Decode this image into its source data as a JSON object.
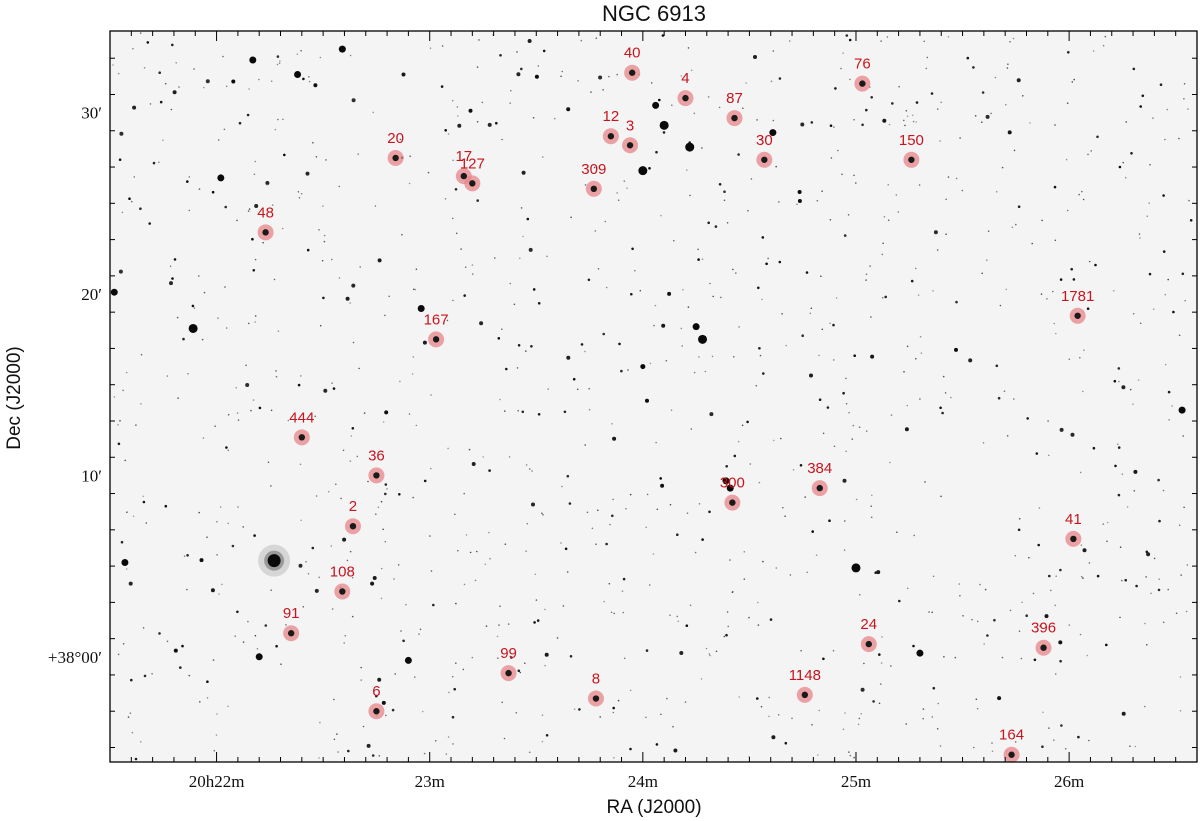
{
  "title": "NGC 6913",
  "x_axis_label": "RA (J2000)",
  "y_axis_label": "Dec (J2000)",
  "x_ticks": [
    {
      "ra_min": 22,
      "label": "20h22m"
    },
    {
      "ra_min": 23,
      "label": "23m"
    },
    {
      "ra_min": 24,
      "label": "24m"
    },
    {
      "ra_min": 25,
      "label": "25m"
    },
    {
      "ra_min": 26,
      "label": "26m"
    }
  ],
  "y_ticks": [
    {
      "dec_arcmin": 0,
      "label": "+38°00′"
    },
    {
      "dec_arcmin": 10,
      "label": "10′"
    },
    {
      "dec_arcmin": 20,
      "label": "20′"
    },
    {
      "dec_arcmin": 30,
      "label": "30′"
    }
  ],
  "ra_range_min": [
    21.5,
    26.6
  ],
  "dec_range_arcmin": [
    -5.8,
    34.5
  ],
  "marker_color": "#e8868a",
  "label_color": "#c8141e",
  "stars": [
    {
      "id": "40",
      "ra": 23.95,
      "dec": 32.2
    },
    {
      "id": "4",
      "ra": 24.2,
      "dec": 30.8
    },
    {
      "id": "87",
      "ra": 24.43,
      "dec": 29.7
    },
    {
      "id": "76",
      "ra": 25.03,
      "dec": 31.6
    },
    {
      "id": "12",
      "ra": 23.85,
      "dec": 28.7
    },
    {
      "id": "3",
      "ra": 23.94,
      "dec": 28.2
    },
    {
      "id": "30",
      "ra": 24.57,
      "dec": 27.4
    },
    {
      "id": "150",
      "ra": 25.26,
      "dec": 27.4
    },
    {
      "id": "20",
      "ra": 22.84,
      "dec": 27.5
    },
    {
      "id": "17",
      "ra": 23.16,
      "dec": 26.5
    },
    {
      "id": "127",
      "ra": 23.2,
      "dec": 26.1
    },
    {
      "id": "309",
      "ra": 23.77,
      "dec": 25.8
    },
    {
      "id": "48",
      "ra": 22.23,
      "dec": 23.4
    },
    {
      "id": "1781",
      "ra": 26.04,
      "dec": 18.8
    },
    {
      "id": "167",
      "ra": 23.03,
      "dec": 17.5
    },
    {
      "id": "444",
      "ra": 22.4,
      "dec": 12.1
    },
    {
      "id": "36",
      "ra": 22.75,
      "dec": 10.0
    },
    {
      "id": "300",
      "ra": 24.42,
      "dec": 8.5
    },
    {
      "id": "384",
      "ra": 24.83,
      "dec": 9.3
    },
    {
      "id": "2",
      "ra": 22.64,
      "dec": 7.2
    },
    {
      "id": "41",
      "ra": 26.02,
      "dec": 6.5
    },
    {
      "id": "108",
      "ra": 22.59,
      "dec": 3.6
    },
    {
      "id": "91",
      "ra": 22.35,
      "dec": 1.3
    },
    {
      "id": "24",
      "ra": 25.06,
      "dec": 0.7
    },
    {
      "id": "396",
      "ra": 25.88,
      "dec": 0.5
    },
    {
      "id": "99",
      "ra": 23.37,
      "dec": -0.9
    },
    {
      "id": "8",
      "ra": 23.78,
      "dec": -2.3
    },
    {
      "id": "1148",
      "ra": 24.76,
      "dec": -2.1
    },
    {
      "id": "6",
      "ra": 22.75,
      "dec": -3.0
    },
    {
      "id": "164",
      "ra": 25.73,
      "dec": -5.4
    }
  ],
  "bright_field_stars": [
    {
      "ra": 22.27,
      "dec": 5.3,
      "mag": 5
    },
    {
      "ra": 21.89,
      "dec": 18.1,
      "mag": 3
    },
    {
      "ra": 24.0,
      "dec": 26.8,
      "mag": 3
    },
    {
      "ra": 24.22,
      "dec": 28.1,
      "mag": 3
    },
    {
      "ra": 24.1,
      "dec": 29.3,
      "mag": 3
    },
    {
      "ra": 24.06,
      "dec": 30.4,
      "mag": 2
    },
    {
      "ra": 25.0,
      "dec": 4.9,
      "mag": 3
    },
    {
      "ra": 24.25,
      "dec": 18.2,
      "mag": 2
    },
    {
      "ra": 24.28,
      "dec": 17.5,
      "mag": 3
    },
    {
      "ra": 22.96,
      "dec": 19.2,
      "mag": 2
    },
    {
      "ra": 22.9,
      "dec": -0.2,
      "mag": 2
    },
    {
      "ra": 22.2,
      "dec": 0.0,
      "mag": 2
    },
    {
      "ra": 22.02,
      "dec": 26.4,
      "mag": 2
    },
    {
      "ra": 26.53,
      "dec": 13.6,
      "mag": 2
    },
    {
      "ra": 21.52,
      "dec": 20.1,
      "mag": 2
    },
    {
      "ra": 22.59,
      "dec": 33.5,
      "mag": 2
    },
    {
      "ra": 22.17,
      "dec": 32.9,
      "mag": 2
    },
    {
      "ra": 24.61,
      "dec": 28.9,
      "mag": 2
    },
    {
      "ra": 24.41,
      "dec": 9.3,
      "mag": 2
    },
    {
      "ra": 24.39,
      "dec": 9.7,
      "mag": 2
    },
    {
      "ra": 24.0,
      "dec": 16.0,
      "mag": 1
    },
    {
      "ra": 22.38,
      "dec": 32.1,
      "mag": 2
    },
    {
      "ra": 25.3,
      "dec": 0.2,
      "mag": 2
    },
    {
      "ra": 21.57,
      "dec": 5.2,
      "mag": 2
    }
  ]
}
